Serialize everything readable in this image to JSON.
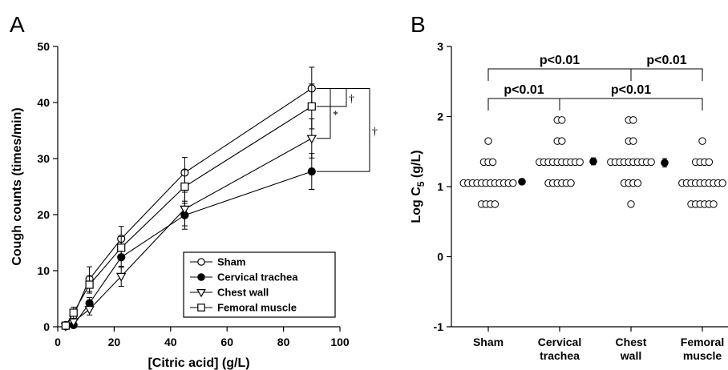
{
  "chart_data": [
    {
      "type": "line",
      "panel_label": "A",
      "xlabel": "[Citric acid] (g/L)",
      "ylabel": "Cough counts (times/min)",
      "xlim": [
        0,
        100
      ],
      "ylim": [
        0,
        50
      ],
      "x_ticks": [
        0,
        20,
        40,
        60,
        80,
        100
      ],
      "y_ticks": [
        0,
        10,
        20,
        30,
        40,
        50
      ],
      "x": [
        2.8,
        5.6,
        11.25,
        22.5,
        45,
        90
      ],
      "series": [
        {
          "name": "Sham",
          "marker": "circle-open",
          "values": [
            0.3,
            2.0,
            8.5,
            15.7,
            27.5,
            42.5
          ],
          "errors": [
            0.3,
            1.0,
            2.2,
            2.2,
            2.7,
            3.8
          ]
        },
        {
          "name": "Cervical trachea",
          "marker": "circle-filled",
          "values": [
            0.1,
            0.3,
            4.2,
            12.4,
            19.9,
            27.7
          ],
          "errors": [
            0.1,
            0.3,
            1.0,
            1.8,
            2.5,
            3.2
          ]
        },
        {
          "name": "Chest wall",
          "marker": "triangle-down-open",
          "values": [
            0.1,
            0.9,
            3.1,
            9.0,
            21.0,
            33.6
          ],
          "errors": [
            0.1,
            0.6,
            1.0,
            1.8,
            3.0,
            3.5
          ]
        },
        {
          "name": "Femoral muscle",
          "marker": "square-open",
          "values": [
            0.2,
            2.5,
            7.5,
            14.1,
            25.0,
            39.3
          ],
          "errors": [
            0.2,
            1.0,
            1.5,
            2.0,
            3.0,
            4.0
          ]
        }
      ],
      "legend_position": "bottom-right",
      "annotations": [
        {
          "text": "*",
          "between": [
            "Sham",
            "Chest wall"
          ]
        },
        {
          "text": "†",
          "between": [
            "Sham",
            "Femoral muscle"
          ]
        },
        {
          "text": "†",
          "between": [
            "Sham",
            "Cervical trachea"
          ]
        }
      ]
    },
    {
      "type": "scatter",
      "panel_label": "B",
      "ylabel": "Log C",
      "ylabel_subscript": "5",
      "ylabel_units": " (g/L)",
      "categories": [
        "Sham",
        "Cervical trachea",
        "Chest wall",
        "Femoral muscle"
      ],
      "category_lines": [
        [
          "Sham",
          ""
        ],
        [
          "Cervical",
          "trachea"
        ],
        [
          "Chest",
          "wall"
        ],
        [
          "Femoral",
          "muscle"
        ]
      ],
      "ylim": [
        -1,
        3
      ],
      "y_ticks": [
        -1,
        0,
        1,
        2,
        3
      ],
      "points": [
        {
          "category": "Sham",
          "levels": [
            [
              0.75,
              4
            ],
            [
              1.05,
              12
            ],
            [
              1.35,
              3
            ],
            [
              1.65,
              1
            ]
          ]
        },
        {
          "category": "Cervical trachea",
          "levels": [
            [
              1.05,
              6
            ],
            [
              1.35,
              10
            ],
            [
              1.65,
              2
            ],
            [
              1.95,
              2
            ]
          ]
        },
        {
          "category": "Chest wall",
          "levels": [
            [
              0.75,
              1
            ],
            [
              1.05,
              4
            ],
            [
              1.35,
              10
            ],
            [
              1.65,
              2
            ],
            [
              1.95,
              2
            ]
          ]
        },
        {
          "category": "Femoral muscle",
          "levels": [
            [
              0.75,
              6
            ],
            [
              1.05,
              10
            ],
            [
              1.35,
              4
            ],
            [
              1.65,
              1
            ]
          ]
        }
      ],
      "means": [
        {
          "category": "Sham",
          "value": 1.07,
          "error": 0.04
        },
        {
          "category": "Cervical trachea",
          "value": 1.36,
          "error": 0.05
        },
        {
          "category": "Chest wall",
          "value": 1.34,
          "error": 0.06
        },
        {
          "category": "Femoral muscle",
          "value": 1.06,
          "error": 0.04
        }
      ],
      "significance": [
        {
          "from": "Sham",
          "to": "Chest wall",
          "label": "p<0.01"
        },
        {
          "from": "Chest wall",
          "to": "Femoral muscle",
          "label": "p<0.01"
        },
        {
          "from": "Sham",
          "to": "Cervical trachea",
          "label": "p<0.01"
        },
        {
          "from": "Cervical trachea",
          "to": "Femoral muscle",
          "label": "p<0.01"
        }
      ]
    }
  ]
}
